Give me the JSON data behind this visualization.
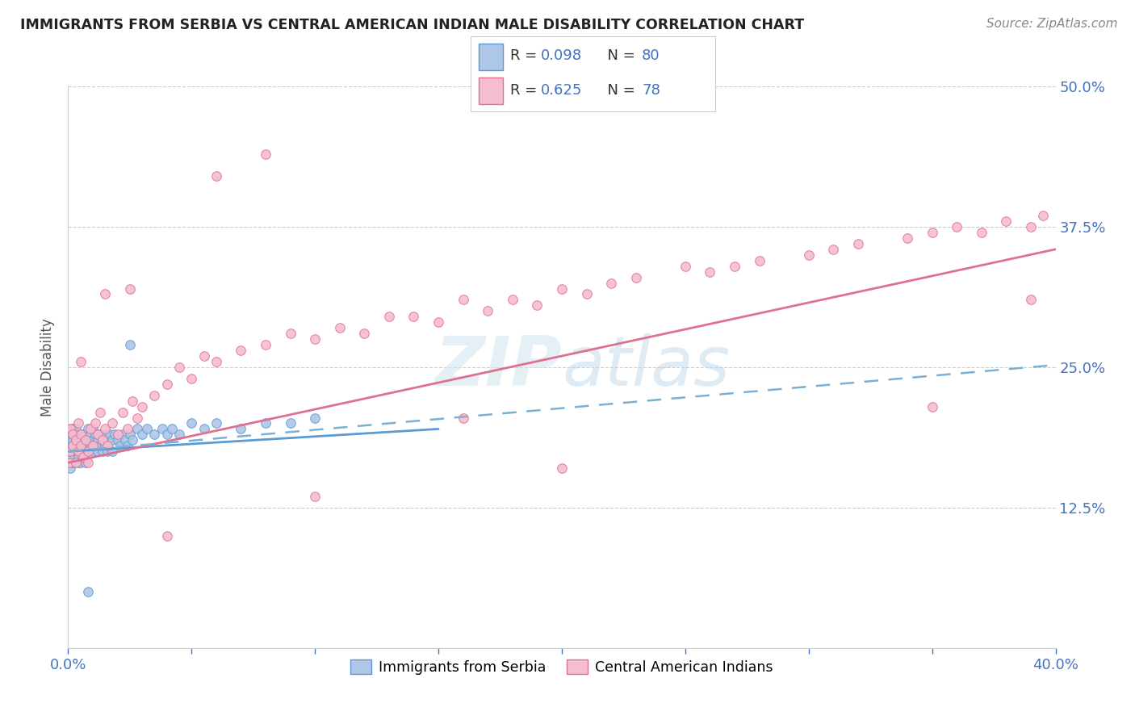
{
  "title": "IMMIGRANTS FROM SERBIA VS CENTRAL AMERICAN INDIAN MALE DISABILITY CORRELATION CHART",
  "source": "Source: ZipAtlas.com",
  "ylabel": "Male Disability",
  "xlim": [
    0.0,
    0.4
  ],
  "ylim": [
    0.0,
    0.5
  ],
  "serbia_color": "#aec6e8",
  "serbia_edge_color": "#5b9bd5",
  "cai_color": "#f4bdd0",
  "cai_edge_color": "#e07090",
  "serbia_R": 0.098,
  "serbia_N": 80,
  "cai_R": 0.625,
  "cai_N": 78,
  "legend_label_serbia": "Immigrants from Serbia",
  "legend_label_cai": "Central American Indians",
  "watermark": "ZIPatlas",
  "legend_text_color": "#4472c4",
  "legend_R_color": "#4472c4",
  "legend_N_color": "#4472c4",
  "serbia_trend": [
    0.0,
    0.15,
    0.1725,
    0.195
  ],
  "cai_trend_x": [
    0.0,
    0.4
  ],
  "cai_trend_y": [
    0.165,
    0.355
  ],
  "dashed_line_x": [
    0.0,
    0.4
  ],
  "dashed_line_y": [
    0.175,
    0.252
  ],
  "dashed_color": "#7ab0d4",
  "serbia_scatter_x": [
    0.0005,
    0.0008,
    0.001,
    0.001,
    0.001,
    0.0012,
    0.0015,
    0.0015,
    0.002,
    0.002,
    0.002,
    0.002,
    0.0025,
    0.003,
    0.003,
    0.003,
    0.003,
    0.0035,
    0.004,
    0.004,
    0.004,
    0.004,
    0.005,
    0.005,
    0.005,
    0.005,
    0.006,
    0.006,
    0.006,
    0.007,
    0.007,
    0.007,
    0.008,
    0.008,
    0.008,
    0.009,
    0.009,
    0.01,
    0.01,
    0.01,
    0.011,
    0.011,
    0.012,
    0.012,
    0.013,
    0.013,
    0.014,
    0.014,
    0.015,
    0.015,
    0.016,
    0.016,
    0.017,
    0.018,
    0.018,
    0.019,
    0.02,
    0.021,
    0.022,
    0.023,
    0.024,
    0.025,
    0.026,
    0.028,
    0.03,
    0.032,
    0.035,
    0.038,
    0.04,
    0.042,
    0.045,
    0.05,
    0.055,
    0.06,
    0.07,
    0.08,
    0.09,
    0.1,
    0.025,
    0.008
  ],
  "serbia_scatter_y": [
    0.175,
    0.165,
    0.18,
    0.19,
    0.16,
    0.185,
    0.175,
    0.195,
    0.165,
    0.18,
    0.185,
    0.195,
    0.17,
    0.175,
    0.185,
    0.165,
    0.195,
    0.175,
    0.17,
    0.18,
    0.185,
    0.165,
    0.19,
    0.175,
    0.185,
    0.165,
    0.18,
    0.19,
    0.17,
    0.185,
    0.175,
    0.165,
    0.185,
    0.195,
    0.175,
    0.18,
    0.19,
    0.185,
    0.175,
    0.195,
    0.18,
    0.19,
    0.185,
    0.175,
    0.19,
    0.18,
    0.185,
    0.175,
    0.19,
    0.18,
    0.185,
    0.175,
    0.19,
    0.185,
    0.175,
    0.19,
    0.185,
    0.18,
    0.19,
    0.185,
    0.18,
    0.19,
    0.185,
    0.195,
    0.19,
    0.195,
    0.19,
    0.195,
    0.19,
    0.195,
    0.19,
    0.2,
    0.195,
    0.2,
    0.195,
    0.2,
    0.2,
    0.205,
    0.27,
    0.05
  ],
  "cai_scatter_x": [
    0.0005,
    0.001,
    0.001,
    0.002,
    0.002,
    0.003,
    0.003,
    0.004,
    0.004,
    0.005,
    0.005,
    0.006,
    0.007,
    0.008,
    0.008,
    0.009,
    0.01,
    0.011,
    0.012,
    0.013,
    0.014,
    0.015,
    0.016,
    0.018,
    0.02,
    0.022,
    0.024,
    0.026,
    0.028,
    0.03,
    0.035,
    0.04,
    0.045,
    0.05,
    0.055,
    0.06,
    0.07,
    0.08,
    0.09,
    0.1,
    0.11,
    0.12,
    0.13,
    0.14,
    0.15,
    0.16,
    0.17,
    0.18,
    0.19,
    0.2,
    0.21,
    0.22,
    0.23,
    0.25,
    0.26,
    0.27,
    0.28,
    0.3,
    0.31,
    0.32,
    0.34,
    0.35,
    0.36,
    0.37,
    0.38,
    0.39,
    0.395,
    0.005,
    0.015,
    0.025,
    0.04,
    0.06,
    0.08,
    0.1,
    0.16,
    0.2,
    0.35,
    0.39
  ],
  "cai_scatter_y": [
    0.165,
    0.175,
    0.195,
    0.18,
    0.19,
    0.165,
    0.185,
    0.175,
    0.2,
    0.18,
    0.19,
    0.17,
    0.185,
    0.175,
    0.165,
    0.195,
    0.18,
    0.2,
    0.19,
    0.21,
    0.185,
    0.195,
    0.18,
    0.2,
    0.19,
    0.21,
    0.195,
    0.22,
    0.205,
    0.215,
    0.225,
    0.235,
    0.25,
    0.24,
    0.26,
    0.255,
    0.265,
    0.27,
    0.28,
    0.275,
    0.285,
    0.28,
    0.295,
    0.295,
    0.29,
    0.31,
    0.3,
    0.31,
    0.305,
    0.32,
    0.315,
    0.325,
    0.33,
    0.34,
    0.335,
    0.34,
    0.345,
    0.35,
    0.355,
    0.36,
    0.365,
    0.37,
    0.375,
    0.37,
    0.38,
    0.375,
    0.385,
    0.255,
    0.315,
    0.32,
    0.1,
    0.42,
    0.44,
    0.135,
    0.205,
    0.16,
    0.215,
    0.31
  ]
}
